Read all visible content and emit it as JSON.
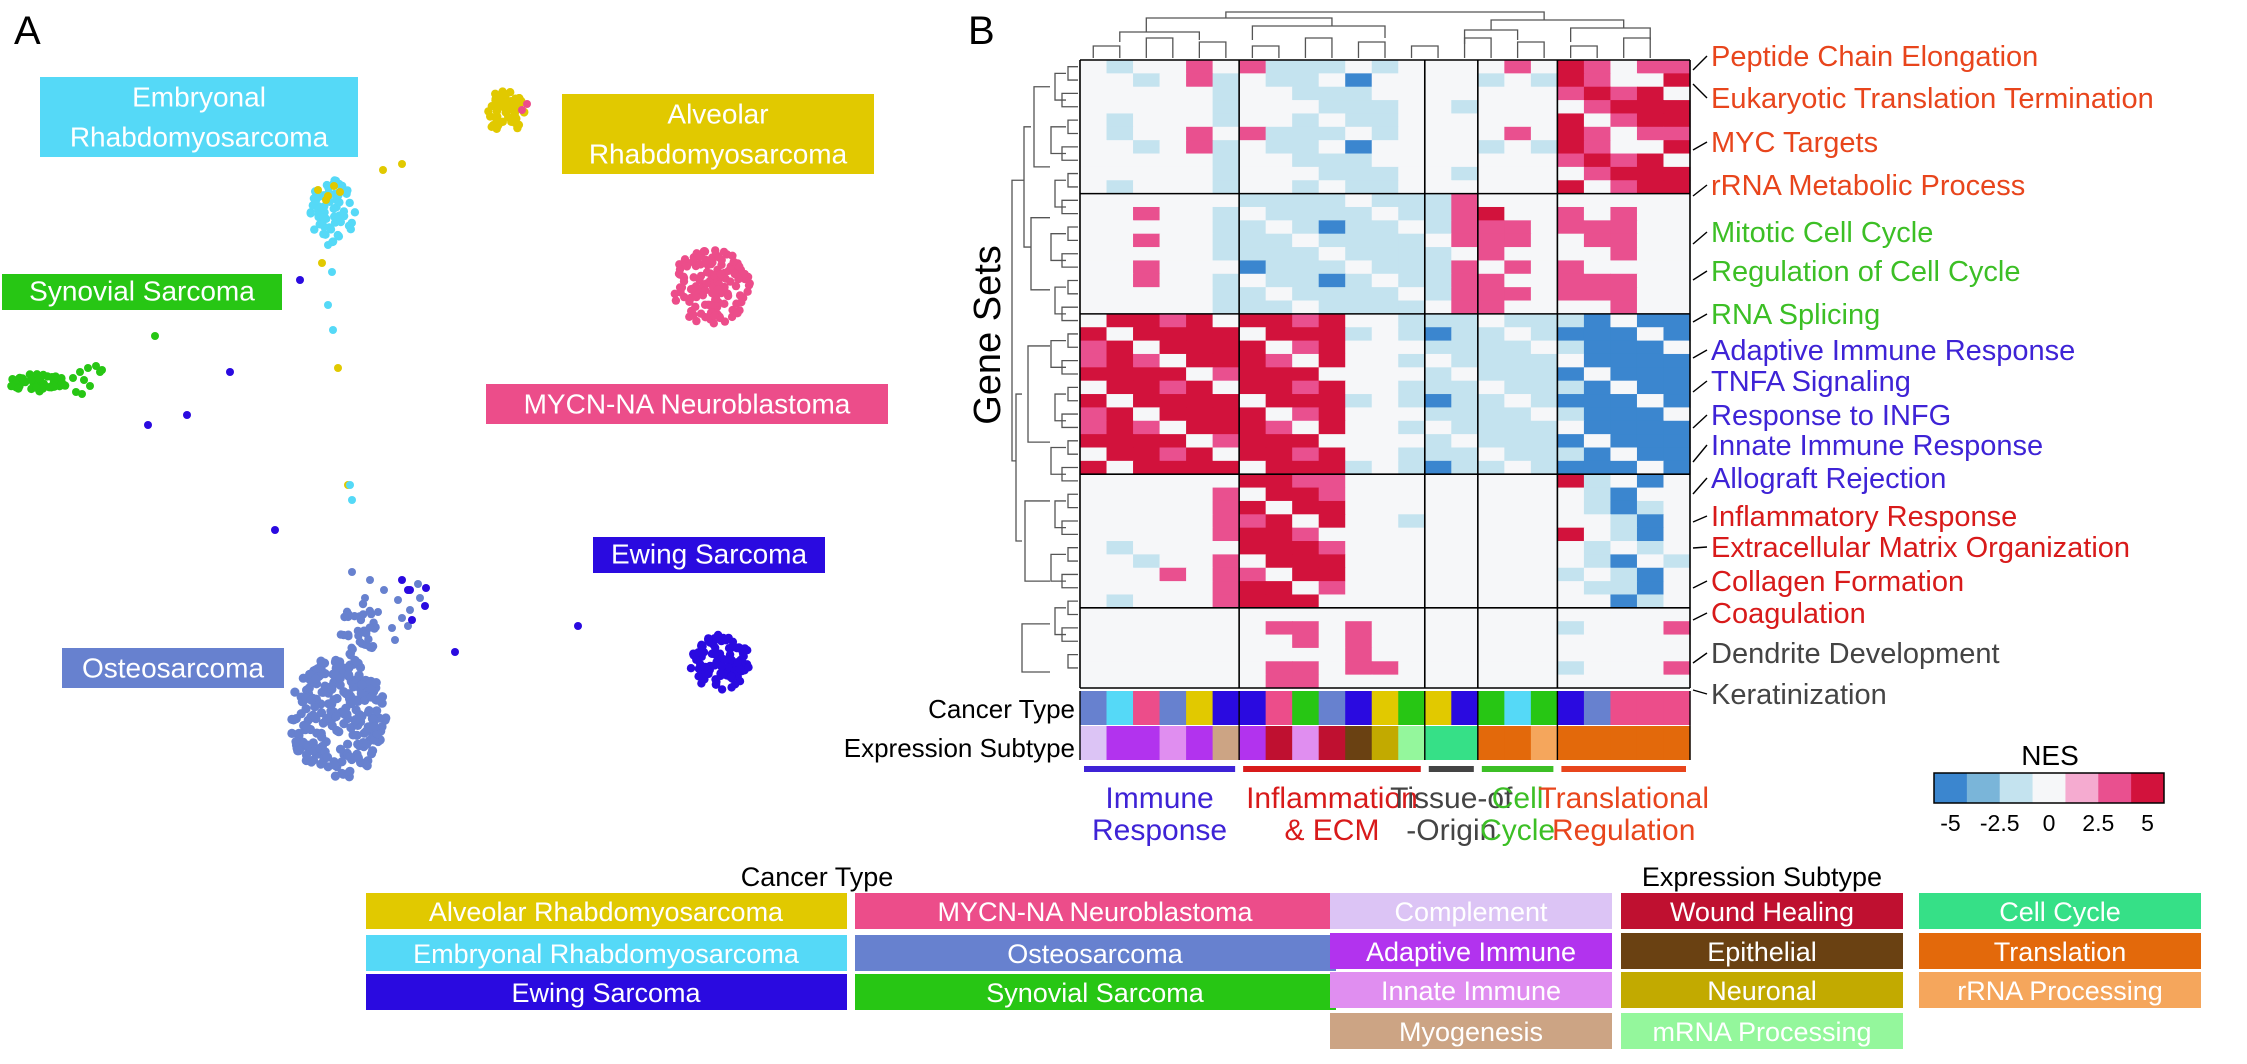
{
  "panels": {
    "a": "A",
    "b": "B"
  },
  "colors": {
    "cancer": {
      "Alveolar Rhabdomyosarcoma": "#e1c900",
      "MYCN-NA Neuroblastoma": "#ec4d8a",
      "Embryonal Rhabdomyosarcoma": "#55d9f7",
      "Osteosarcoma": "#6781cf",
      "Ewing Sarcoma": "#2a0ae0",
      "Synovial Sarcoma": "#27c614"
    },
    "subtype": {
      "Complement": "#dcc4f5",
      "Wound Healing": "#bf1030",
      "Cell Cycle": "#36e087",
      "Adaptive Immune": "#b233ee",
      "Epithelial": "#6a4112",
      "Translation": "#e3690b",
      "Innate Immune": "#e08ef0",
      "Neuronal": "#c2aa00",
      "rRNA Processing": "#f5a65c",
      "Myogenesis": "#cca484",
      "mRNA Processing": "#94f79c"
    },
    "nes": [
      "#3b86cf",
      "#7ab5d9",
      "#c4e3ef",
      "#f6f7f9",
      "#f5abd0",
      "#e9508f",
      "#d2123c"
    ]
  },
  "scatter": {
    "labels": [
      {
        "lines": [
          "Embryonal",
          "Rhabdomyosarcoma"
        ],
        "type": "Embryonal Rhabdomyosarcoma"
      },
      {
        "lines": [
          "Alveolar",
          "Rhabdomyosarcoma"
        ],
        "type": "Alveolar Rhabdomyosarcoma"
      },
      {
        "lines": [
          "Synovial Sarcoma"
        ],
        "type": "Synovial Sarcoma"
      },
      {
        "lines": [
          "MYCN-NA Neuroblastoma"
        ],
        "type": "MYCN-NA Neuroblastoma"
      },
      {
        "lines": [
          "Ewing Sarcoma"
        ],
        "type": "Ewing Sarcoma"
      },
      {
        "lines": [
          "Osteosarcoma"
        ],
        "type": "Osteosarcoma"
      }
    ]
  },
  "chart_data": {
    "type": "heatmap",
    "ylabel": "Gene Sets",
    "row_track_labels": [
      "Cancer Type",
      "Expression Subtype"
    ],
    "gene_set_labels": [
      {
        "text": "Peptide Chain Elongation",
        "group": "Translational Regulation"
      },
      {
        "text": "Eukaryotic Translation Termination",
        "group": "Translational Regulation"
      },
      {
        "text": "MYC Targets",
        "group": "Translational Regulation"
      },
      {
        "text": "rRNA Metabolic  Process",
        "group": "Translational Regulation"
      },
      {
        "text": "Mitotic Cell Cycle",
        "group": "Cell Cycle"
      },
      {
        "text": "Regulation of Cell Cycle",
        "group": "Cell Cycle"
      },
      {
        "text": "RNA Splicing",
        "group": "Cell Cycle"
      },
      {
        "text": "Adaptive Immune Response",
        "group": "Immune Response"
      },
      {
        "text": "TNFA Signaling",
        "group": "Immune Response"
      },
      {
        "text": "Response to INFG",
        "group": "Immune Response"
      },
      {
        "text": "Innate Immune Response",
        "group": "Immune Response"
      },
      {
        "text": "Allograft Rejection",
        "group": "Immune Response"
      },
      {
        "text": "Inflammatory Response",
        "group": "Inflammation & ECM"
      },
      {
        "text": "Extracellular Matrix Organization",
        "group": "Inflammation & ECM"
      },
      {
        "text": "Collagen Formation",
        "group": "Inflammation & ECM"
      },
      {
        "text": "Coagulation",
        "group": "Inflammation & ECM"
      },
      {
        "text": "Dendrite Development",
        "group": "Other"
      },
      {
        "text": "Keratinization",
        "group": "Other"
      }
    ],
    "label_colors": {
      "Translational Regulation": "#e8451c",
      "Cell Cycle": "#3cbf25",
      "Immune Response": "#3e23d6",
      "Inflammation & ECM": "#d81a1a",
      "Tissue-of-Origin": "#444444",
      "Other": "#444444"
    },
    "column_groups": [
      {
        "lines": [
          "Immune",
          "Response"
        ],
        "group": "Immune Response",
        "columns": 6
      },
      {
        "lines": [
          "Inflammation",
          "& ECM"
        ],
        "group": "Inflammation & ECM",
        "columns": 7
      },
      {
        "lines": [
          "Tissue-of",
          "-Origin"
        ],
        "group": "Tissue-of-Origin",
        "columns": 2
      },
      {
        "lines": [
          "Cell",
          "Cycle"
        ],
        "group": "Cell Cycle",
        "columns": 3
      },
      {
        "lines": [
          "Translational",
          "Regulation"
        ],
        "group": "Translational Regulation",
        "columns": 5
      }
    ],
    "row_blocks": [
      {
        "group": "Translational Regulation",
        "rows": 10,
        "values": [
          [
            -5,
            -2.5,
            0,
            0,
            2.5,
            -5,
            2.5,
            -2.5,
            -2.5,
            -2.5,
            0,
            -2.5,
            0,
            0,
            0,
            -2.5,
            2.5,
            0,
            5,
            2.5,
            2.5,
            2.5,
            2.5
          ],
          [
            0,
            0,
            -2.5,
            0,
            2.5,
            -2.5,
            0,
            -2.5,
            -2.5,
            0,
            -5,
            0,
            0,
            0,
            0,
            -2.5,
            0,
            -2.5,
            5,
            2.5,
            0,
            2.5,
            5
          ],
          [
            0,
            0,
            0,
            0,
            0,
            -2.5,
            0,
            0,
            -2.5,
            -2.5,
            -2.5,
            0,
            0,
            0,
            0,
            0,
            0,
            0,
            2.5,
            5,
            2.5,
            5,
            5
          ],
          [
            0,
            0,
            0,
            0,
            0,
            -2.5,
            0,
            0,
            -2.5,
            -2.5,
            -2.5,
            -2.5,
            0,
            0,
            -2.5,
            0,
            0,
            0,
            2.5,
            2.5,
            5,
            5,
            5
          ],
          [
            0,
            -2.5,
            0,
            0,
            0,
            -2.5,
            0,
            0,
            -2.5,
            -2.5,
            -2.5,
            -2.5,
            0,
            0,
            0,
            0,
            0,
            0,
            5,
            2.5,
            2.5,
            5,
            5
          ]
        ]
      },
      {
        "group": "Cell Cycle",
        "rows": 9,
        "values": [
          [
            0,
            0,
            0,
            0,
            0,
            -2.5,
            -2.5,
            -2.5,
            -2.5,
            -2.5,
            -2.5,
            -2.5,
            -2.5,
            -2.5,
            2.5,
            2.5,
            0,
            0,
            0,
            0,
            2.5,
            0,
            0
          ],
          [
            0,
            0,
            2.5,
            0,
            0,
            -2.5,
            -5,
            -2.5,
            -2.5,
            -2.5,
            -2.5,
            -2.5,
            -2.5,
            -2.5,
            2.5,
            5,
            2.5,
            0,
            2.5,
            0,
            2.5,
            0,
            0
          ],
          [
            0,
            0,
            2.5,
            0,
            0,
            -2.5,
            -2.5,
            -2.5,
            -2.5,
            -5,
            -2.5,
            -2.5,
            -2.5,
            -2.5,
            2.5,
            2.5,
            2.5,
            0,
            2.5,
            2.5,
            2.5,
            0,
            0
          ],
          [
            0,
            0,
            2.5,
            0,
            0,
            -2.5,
            -2.5,
            -2.5,
            -2.5,
            -2.5,
            -2.5,
            -2.5,
            -2.5,
            -2.5,
            2.5,
            2.5,
            2.5,
            0,
            2.5,
            2.5,
            2.5,
            0,
            0
          ]
        ]
      },
      {
        "group": "Immune Response",
        "rows": 12,
        "values": [
          [
            2.5,
            5,
            5,
            2.5,
            5,
            2.5,
            5,
            5,
            2.5,
            5,
            0,
            0,
            -2.5,
            -2.5,
            -2.5,
            -2.5,
            -2.5,
            -2.5,
            -2.5,
            -5,
            -5,
            -5,
            -5
          ],
          [
            5,
            5,
            5,
            5,
            5,
            5,
            5,
            5,
            5,
            5,
            -2.5,
            0,
            -2.5,
            -5,
            -2.5,
            -2.5,
            -2.5,
            -2.5,
            -5,
            -5,
            -5,
            -5,
            -5
          ],
          [
            2.5,
            5,
            5,
            5,
            5,
            5,
            5,
            5,
            2.5,
            5,
            0,
            0,
            -2.5,
            -2.5,
            -2.5,
            -2.5,
            -2.5,
            -5,
            -2.5,
            -5,
            -5,
            -5,
            -5
          ],
          [
            2.5,
            5,
            2.5,
            5,
            5,
            5,
            5,
            2.5,
            5,
            5,
            0,
            0,
            -2.5,
            -2.5,
            -2.5,
            -2.5,
            -2.5,
            -2.5,
            -5,
            -5,
            -5,
            -5,
            -5
          ],
          [
            5,
            5,
            5,
            5,
            5,
            2.5,
            5,
            5,
            5,
            5,
            0,
            0,
            0,
            -2.5,
            -2.5,
            -2.5,
            -2.5,
            -2.5,
            -5,
            -5,
            -5,
            -5,
            -5
          ]
        ]
      },
      {
        "group": "Inflammation & ECM",
        "rows": 10,
        "values": [
          [
            0,
            0,
            0,
            0,
            0,
            2.5,
            5,
            5,
            2.5,
            2.5,
            0,
            0,
            0,
            0,
            0,
            0,
            0,
            0,
            5,
            -2.5,
            -2.5,
            -5,
            0
          ],
          [
            0,
            -2.5,
            0,
            0,
            0,
            2.5,
            5,
            5,
            5,
            2.5,
            0,
            0,
            0,
            0,
            0,
            0,
            0,
            0,
            0,
            -2.5,
            -5,
            -2.5,
            0
          ],
          [
            0,
            0,
            -2.5,
            0,
            0,
            2.5,
            5,
            5,
            5,
            5,
            0,
            0,
            0,
            0,
            0,
            0,
            0,
            0,
            0,
            -2.5,
            -5,
            -2.5,
            -2.5
          ],
          [
            0,
            0,
            0,
            2.5,
            0,
            2.5,
            2.5,
            5,
            5,
            5,
            0,
            0,
            -2.5,
            0,
            0,
            0,
            0,
            0,
            -2.5,
            0,
            -2.5,
            -5,
            0
          ]
        ]
      },
      {
        "group": "Other",
        "rows": 6,
        "values": [
          [
            0,
            0,
            0,
            0,
            0,
            0,
            0,
            0,
            0,
            0,
            2.5,
            0,
            0,
            0,
            0,
            0,
            0,
            0,
            0,
            0,
            0,
            0,
            0
          ],
          [
            0,
            0,
            0,
            0,
            0,
            0,
            0,
            2.5,
            2.5,
            0,
            2.5,
            2.5,
            0,
            0,
            0,
            0,
            0,
            0,
            -2.5,
            0,
            0,
            0,
            2.5
          ],
          [
            0,
            0,
            0,
            0,
            0,
            0,
            0,
            2.5,
            2.5,
            0,
            2.5,
            0,
            0,
            0,
            0,
            0,
            0,
            0,
            0,
            0,
            0,
            0,
            0
          ]
        ]
      }
    ],
    "cancer_type_track": [
      "Osteosarcoma",
      "Embryonal Rhabdomyosarcoma",
      "MYCN-NA Neuroblastoma",
      "Osteosarcoma",
      "Alveolar Rhabdomyosarcoma",
      "Ewing Sarcoma",
      "Ewing Sarcoma",
      "MYCN-NA Neuroblastoma",
      "Synovial Sarcoma",
      "Osteosarcoma",
      "Ewing Sarcoma",
      "Alveolar Rhabdomyosarcoma",
      "Synovial Sarcoma",
      "Alveolar Rhabdomyosarcoma",
      "Ewing Sarcoma",
      "Synovial Sarcoma",
      "Embryonal Rhabdomyosarcoma",
      "Synovial Sarcoma",
      "Ewing Sarcoma",
      "Osteosarcoma",
      "MYCN-NA Neuroblastoma",
      "MYCN-NA Neuroblastoma",
      "MYCN-NA Neuroblastoma"
    ],
    "subtype_track": [
      "Complement",
      "Adaptive Immune",
      "Adaptive Immune",
      "Innate Immune",
      "Adaptive Immune",
      "Myogenesis",
      "Adaptive Immune",
      "Wound Healing",
      "Innate Immune",
      "Wound Healing",
      "Epithelial",
      "Neuronal",
      "mRNA Processing",
      "Cell Cycle",
      "Cell Cycle",
      "Translation",
      "Translation",
      "rRNA Processing",
      "Translation",
      "Translation",
      "Translation",
      "Translation",
      "Translation"
    ],
    "legend": {
      "title": "NES",
      "ticks": [
        "-5",
        "-2.5",
        "0",
        "2.5",
        "5"
      ],
      "range": [
        -5,
        5
      ]
    }
  },
  "legends": {
    "cancer_type": {
      "title": "Cancer Type",
      "items": [
        "Alveolar Rhabdomyosarcoma",
        "MYCN-NA Neuroblastoma",
        "Embryonal Rhabdomyosarcoma",
        "Osteosarcoma",
        "Ewing Sarcoma",
        "Synovial Sarcoma"
      ]
    },
    "expression_subtype": {
      "title": "Expression Subtype",
      "items": [
        "Complement",
        "Wound Healing",
        "Cell Cycle",
        "Adaptive Immune",
        "Epithelial",
        "Translation",
        "Innate Immune",
        "Neuronal",
        "rRNA Processing",
        "Myogenesis",
        "mRNA Processing"
      ]
    }
  }
}
